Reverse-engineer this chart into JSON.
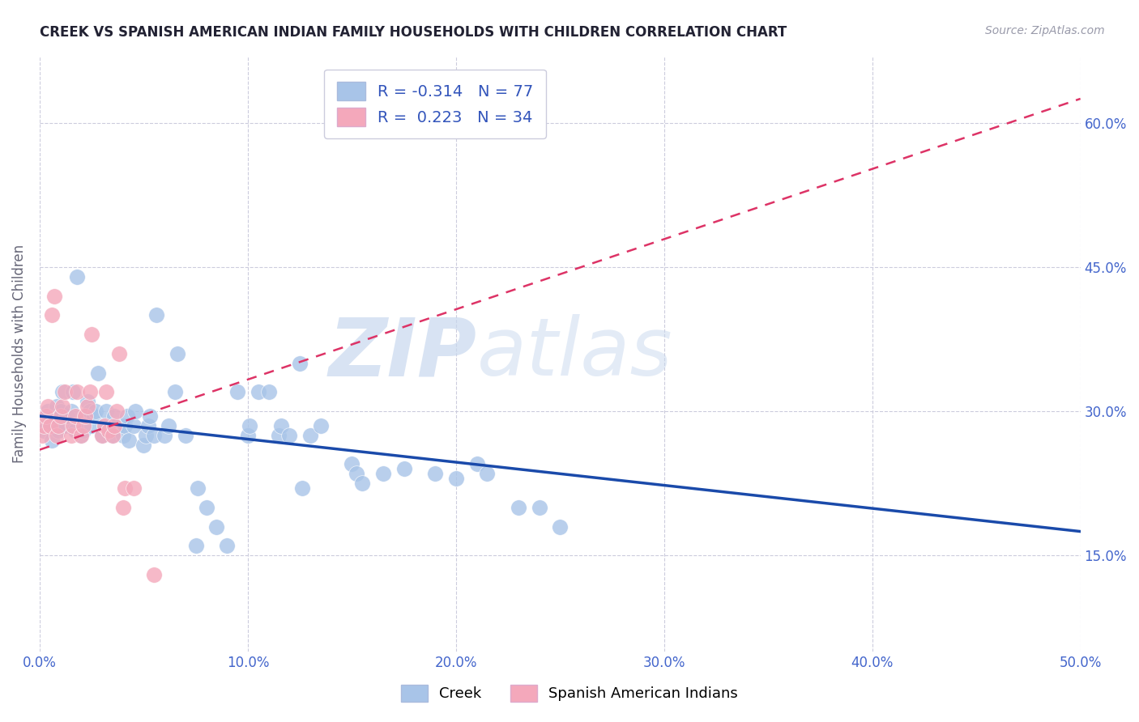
{
  "title": "CREEK VS SPANISH AMERICAN INDIAN FAMILY HOUSEHOLDS WITH CHILDREN CORRELATION CHART",
  "source": "Source: ZipAtlas.com",
  "ylabel": "Family Households with Children",
  "xlim": [
    0.0,
    0.5
  ],
  "ylim": [
    0.05,
    0.67
  ],
  "creek_color": "#a8c4e8",
  "spanish_color": "#f4a8bb",
  "creek_R": -0.314,
  "creek_N": 77,
  "spanish_R": 0.223,
  "spanish_N": 34,
  "legend_creek_label": "Creek",
  "legend_spanish_label": "Spanish American Indians",
  "creek_line_color": "#1a4aaa",
  "spanish_line_color": "#dd3366",
  "watermark_zip": "ZIP",
  "watermark_atlas": "atlas",
  "xtick_vals": [
    0.0,
    0.1,
    0.2,
    0.3,
    0.4,
    0.5
  ],
  "ytick_vals": [
    0.15,
    0.3,
    0.45,
    0.6
  ],
  "tick_color": "#4466cc",
  "creek_x": [
    0.002,
    0.003,
    0.004,
    0.005,
    0.006,
    0.007,
    0.008,
    0.009,
    0.01,
    0.011,
    0.012,
    0.013,
    0.015,
    0.016,
    0.017,
    0.018,
    0.02,
    0.021,
    0.022,
    0.023,
    0.024,
    0.025,
    0.026,
    0.027,
    0.028,
    0.03,
    0.031,
    0.032,
    0.035,
    0.036,
    0.037,
    0.04,
    0.041,
    0.042,
    0.043,
    0.045,
    0.046,
    0.05,
    0.051,
    0.052,
    0.053,
    0.055,
    0.056,
    0.06,
    0.062,
    0.065,
    0.066,
    0.07,
    0.075,
    0.076,
    0.08,
    0.085,
    0.09,
    0.095,
    0.1,
    0.101,
    0.105,
    0.11,
    0.115,
    0.116,
    0.12,
    0.125,
    0.126,
    0.13,
    0.135,
    0.15,
    0.152,
    0.155,
    0.165,
    0.175,
    0.19,
    0.2,
    0.21,
    0.215,
    0.23,
    0.24,
    0.25
  ],
  "creek_y": [
    0.28,
    0.295,
    0.3,
    0.285,
    0.27,
    0.295,
    0.305,
    0.28,
    0.3,
    0.32,
    0.285,
    0.295,
    0.3,
    0.32,
    0.28,
    0.44,
    0.275,
    0.28,
    0.295,
    0.31,
    0.3,
    0.285,
    0.295,
    0.3,
    0.34,
    0.275,
    0.285,
    0.3,
    0.275,
    0.295,
    0.285,
    0.275,
    0.285,
    0.295,
    0.27,
    0.285,
    0.3,
    0.265,
    0.275,
    0.285,
    0.295,
    0.275,
    0.4,
    0.275,
    0.285,
    0.32,
    0.36,
    0.275,
    0.16,
    0.22,
    0.2,
    0.18,
    0.16,
    0.32,
    0.275,
    0.285,
    0.32,
    0.32,
    0.275,
    0.285,
    0.275,
    0.35,
    0.22,
    0.275,
    0.285,
    0.245,
    0.235,
    0.225,
    0.235,
    0.24,
    0.235,
    0.23,
    0.245,
    0.235,
    0.2,
    0.2,
    0.18
  ],
  "spanish_x": [
    0.001,
    0.002,
    0.003,
    0.004,
    0.005,
    0.006,
    0.007,
    0.008,
    0.009,
    0.01,
    0.011,
    0.012,
    0.015,
    0.016,
    0.017,
    0.018,
    0.02,
    0.021,
    0.022,
    0.023,
    0.024,
    0.025,
    0.03,
    0.031,
    0.032,
    0.033,
    0.035,
    0.036,
    0.037,
    0.038,
    0.04,
    0.041,
    0.045,
    0.055
  ],
  "spanish_y": [
    0.275,
    0.285,
    0.295,
    0.305,
    0.285,
    0.4,
    0.42,
    0.275,
    0.285,
    0.295,
    0.305,
    0.32,
    0.275,
    0.285,
    0.295,
    0.32,
    0.275,
    0.285,
    0.295,
    0.305,
    0.32,
    0.38,
    0.275,
    0.285,
    0.32,
    0.28,
    0.275,
    0.285,
    0.3,
    0.36,
    0.2,
    0.22,
    0.22,
    0.13
  ]
}
